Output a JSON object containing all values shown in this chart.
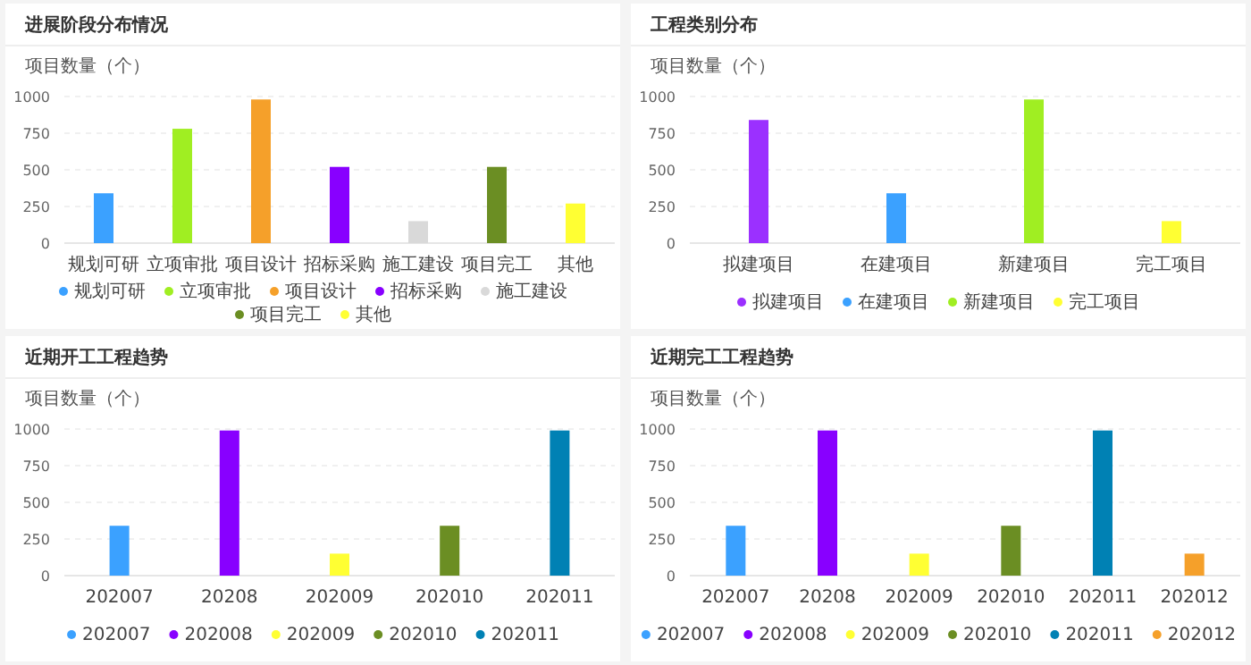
{
  "chart_data": [
    {
      "type": "bar",
      "title": "进展阶段分布情况",
      "ylabel": "项目数量（个）",
      "stacked": true,
      "categories": [
        "规划可研",
        "立项审批",
        "项目设计",
        "招标采购",
        "施工建设",
        "项目完工",
        "其他"
      ],
      "series": [
        {
          "name": "规划可研",
          "color": "#3ba1ff",
          "values": [
            340,
            null,
            null,
            null,
            null,
            null,
            null
          ]
        },
        {
          "name": "立项审批",
          "color": "#a0ee22",
          "values": [
            null,
            780,
            null,
            null,
            null,
            null,
            null
          ]
        },
        {
          "name": "项目设计",
          "color": "#f5a02a",
          "values": [
            null,
            null,
            980,
            null,
            null,
            null,
            null
          ]
        },
        {
          "name": "招标采购",
          "color": "#8800ff",
          "values": [
            null,
            null,
            null,
            520,
            null,
            null,
            null
          ]
        },
        {
          "name": "施工建设",
          "color": "#d9d9d9",
          "values": [
            null,
            null,
            null,
            null,
            150,
            null,
            null
          ]
        },
        {
          "name": "项目完工",
          "color": "#6b8e23",
          "values": [
            null,
            null,
            null,
            null,
            null,
            520,
            null
          ]
        },
        {
          "name": "其他",
          "color": "#ffff33",
          "values": [
            null,
            null,
            null,
            null,
            null,
            null,
            270
          ]
        }
      ],
      "ylim": [
        0,
        1000
      ],
      "yticks": [
        0,
        250,
        500,
        750,
        1000
      ],
      "grid": "y",
      "legend": "bottom",
      "marker": "circle"
    },
    {
      "type": "bar",
      "title": "工程类别分布",
      "ylabel": "项目数量（个）",
      "stacked": true,
      "categories": [
        "拟建项目",
        "在建项目",
        "新建项目",
        "完工项目"
      ],
      "series": [
        {
          "name": "拟建项目",
          "color": "#9b30ff",
          "values": [
            840,
            null,
            null,
            null
          ]
        },
        {
          "name": "在建项目",
          "color": "#3ba1ff",
          "values": [
            null,
            340,
            null,
            null
          ]
        },
        {
          "name": "新建项目",
          "color": "#a0ee22",
          "values": [
            null,
            null,
            980,
            null
          ]
        },
        {
          "name": "完工项目",
          "color": "#ffff33",
          "values": [
            null,
            null,
            null,
            150
          ]
        }
      ],
      "ylim": [
        0,
        1000
      ],
      "yticks": [
        0,
        250,
        500,
        750,
        1000
      ],
      "grid": "y",
      "legend": "bottom",
      "marker": "circle"
    },
    {
      "type": "bar",
      "title": "近期开工工程趋势",
      "ylabel": "项目数量（个）",
      "stacked": true,
      "categories": [
        "202007",
        "20208",
        "202009",
        "202010",
        "202011"
      ],
      "series": [
        {
          "name": "202007",
          "color": "#3ba1ff",
          "values": [
            340,
            null,
            null,
            null,
            null
          ]
        },
        {
          "name": "202008",
          "color": "#8800ff",
          "values": [
            null,
            990,
            null,
            null,
            null
          ]
        },
        {
          "name": "202009",
          "color": "#ffff33",
          "values": [
            null,
            null,
            150,
            null,
            null
          ]
        },
        {
          "name": "202010",
          "color": "#6b8e23",
          "values": [
            null,
            null,
            null,
            340,
            null
          ]
        },
        {
          "name": "202011",
          "color": "#0081b4",
          "values": [
            null,
            null,
            null,
            null,
            990
          ]
        }
      ],
      "ylim": [
        0,
        1000
      ],
      "yticks": [
        0,
        250,
        500,
        750,
        1000
      ],
      "grid": "y",
      "legend": "bottom",
      "marker": "circle"
    },
    {
      "type": "bar",
      "title": "近期完工工程趋势",
      "ylabel": "项目数量（个）",
      "stacked": true,
      "categories": [
        "202007",
        "20208",
        "202009",
        "202010",
        "202011",
        "202012"
      ],
      "series": [
        {
          "name": "202007",
          "color": "#3ba1ff",
          "values": [
            340,
            null,
            null,
            null,
            null,
            null
          ]
        },
        {
          "name": "202008",
          "color": "#8800ff",
          "values": [
            null,
            990,
            null,
            null,
            null,
            null
          ]
        },
        {
          "name": "202009",
          "color": "#ffff33",
          "values": [
            null,
            null,
            150,
            null,
            null,
            null
          ]
        },
        {
          "name": "202010",
          "color": "#6b8e23",
          "values": [
            null,
            null,
            null,
            340,
            null,
            null
          ]
        },
        {
          "name": "202011",
          "color": "#0081b4",
          "values": [
            null,
            null,
            null,
            null,
            990,
            null
          ]
        },
        {
          "name": "202012",
          "color": "#f5a02a",
          "values": [
            null,
            null,
            null,
            null,
            null,
            150
          ]
        }
      ],
      "ylim": [
        0,
        1000
      ],
      "yticks": [
        0,
        250,
        500,
        750,
        1000
      ],
      "grid": "y",
      "legend": "bottom",
      "marker": "circle"
    }
  ]
}
